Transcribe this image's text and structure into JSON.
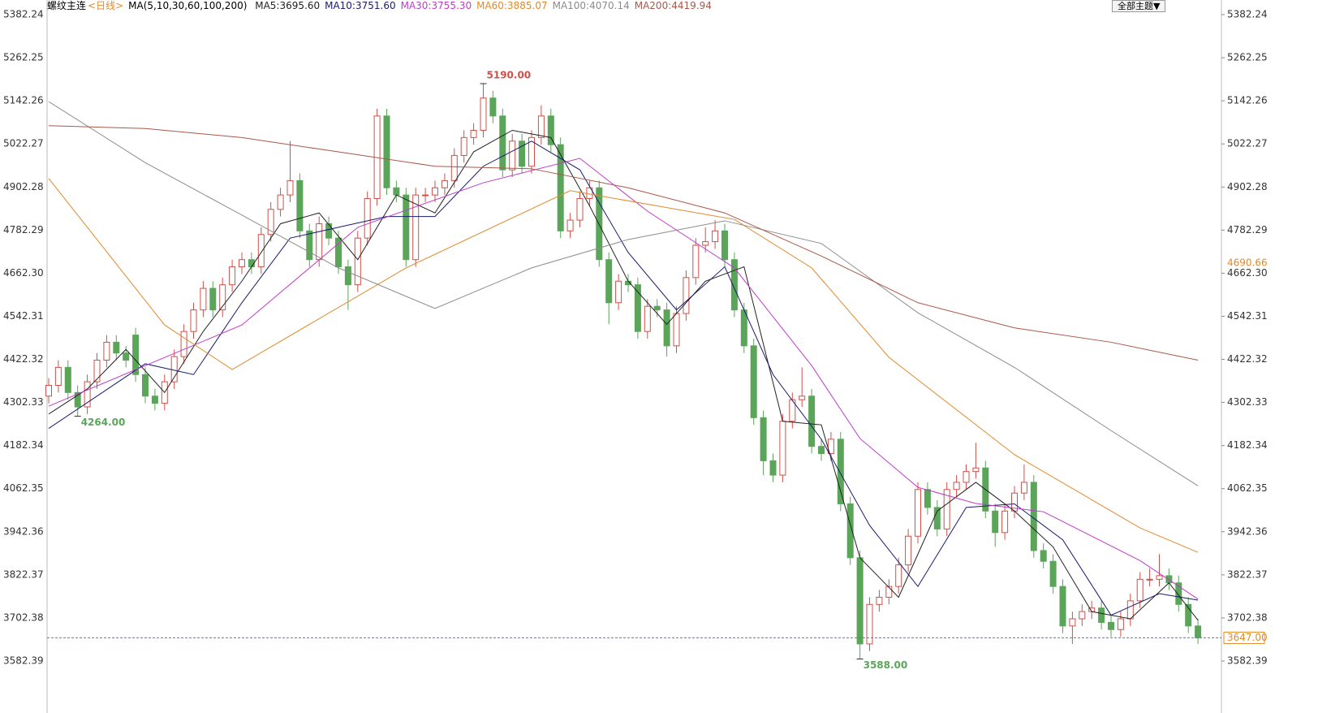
{
  "chart_data": {
    "type": "candlestick",
    "header": {
      "symbol": "螺纹主连",
      "period": "<日线>",
      "ma_set": "MA(5,10,30,60,100,200)",
      "theme_button": "全部主题▼"
    },
    "ylim": [
      3505.5,
      5422.9
    ],
    "yticks": [
      5382.24,
      5262.25,
      5142.26,
      5022.27,
      4902.28,
      4782.29,
      {
        "value": 4662.3,
        "label": "4662.30"
      },
      4542.31,
      4422.32,
      4302.33,
      4182.34,
      4062.35,
      3942.36,
      3822.37,
      3702.38,
      3582.39
    ],
    "up_color": "#d0504a",
    "down_color": "#5aa55a",
    "ohlc": [
      [
        4320,
        4370,
        4300,
        4350
      ],
      [
        4350,
        4420,
        4330,
        4400
      ],
      [
        4400,
        4420,
        4310,
        4330
      ],
      [
        4330,
        4350,
        4264,
        4290
      ],
      [
        4290,
        4380,
        4270,
        4360
      ],
      [
        4360,
        4440,
        4340,
        4420
      ],
      [
        4420,
        4490,
        4400,
        4470
      ],
      [
        4470,
        4490,
        4420,
        4440
      ],
      [
        4440,
        4460,
        4400,
        4420
      ],
      [
        4490,
        4510,
        4360,
        4380
      ],
      [
        4380,
        4400,
        4300,
        4320
      ],
      [
        4320,
        4340,
        4280,
        4300
      ],
      [
        4300,
        4380,
        4280,
        4360
      ],
      [
        4360,
        4450,
        4340,
        4430
      ],
      [
        4430,
        4520,
        4410,
        4500
      ],
      [
        4500,
        4580,
        4480,
        4560
      ],
      [
        4560,
        4640,
        4540,
        4620
      ],
      [
        4620,
        4640,
        4540,
        4560
      ],
      [
        4560,
        4650,
        4540,
        4630
      ],
      [
        4630,
        4700,
        4610,
        4680
      ],
      [
        4680,
        4720,
        4660,
        4700
      ],
      [
        4700,
        4720,
        4660,
        4680
      ],
      [
        4680,
        4790,
        4660,
        4770
      ],
      [
        4770,
        4860,
        4750,
        4840
      ],
      [
        4840,
        4900,
        4820,
        4880
      ],
      [
        4880,
        5030,
        4860,
        4920
      ],
      [
        4920,
        4940,
        4760,
        4780
      ],
      [
        4780,
        4800,
        4680,
        4700
      ],
      [
        4700,
        4820,
        4680,
        4800
      ],
      [
        4800,
        4820,
        4740,
        4760
      ],
      [
        4760,
        4780,
        4660,
        4680
      ],
      [
        4680,
        4700,
        4560,
        4630
      ],
      [
        4630,
        4780,
        4610,
        4760
      ],
      [
        4760,
        4890,
        4740,
        4870
      ],
      [
        4870,
        5120,
        4850,
        5100
      ],
      [
        5100,
        5120,
        4880,
        4900
      ],
      [
        4900,
        4920,
        4860,
        4880
      ],
      [
        4880,
        4900,
        4680,
        4700
      ],
      [
        4700,
        4900,
        4680,
        4880
      ],
      [
        4880,
        4900,
        4860,
        4880
      ],
      [
        4880,
        4920,
        4860,
        4900
      ],
      [
        4900,
        4940,
        4880,
        4920
      ],
      [
        4920,
        5010,
        4900,
        4990
      ],
      [
        4990,
        5060,
        4970,
        5040
      ],
      [
        5040,
        5080,
        5020,
        5060
      ],
      [
        5060,
        5190,
        5040,
        5150
      ],
      [
        5150,
        5170,
        5080,
        5100
      ],
      [
        5100,
        5120,
        4930,
        4950
      ],
      [
        4950,
        5050,
        4930,
        5030
      ],
      [
        5030,
        5050,
        4940,
        4960
      ],
      [
        4960,
        5060,
        4940,
        5040
      ],
      [
        5040,
        5130,
        5020,
        5100
      ],
      [
        5100,
        5120,
        5000,
        5020
      ],
      [
        5020,
        5040,
        4760,
        4780
      ],
      [
        4780,
        4830,
        4760,
        4810
      ],
      [
        4810,
        4890,
        4790,
        4870
      ],
      [
        4870,
        4920,
        4850,
        4900
      ],
      [
        4900,
        4920,
        4680,
        4700
      ],
      [
        4700,
        4720,
        4520,
        4580
      ],
      [
        4580,
        4660,
        4560,
        4640
      ],
      [
        4640,
        4660,
        4610,
        4630
      ],
      [
        4630,
        4650,
        4480,
        4500
      ],
      [
        4500,
        4590,
        4480,
        4570
      ],
      [
        4570,
        4590,
        4540,
        4560
      ],
      [
        4560,
        4580,
        4430,
        4460
      ],
      [
        4460,
        4570,
        4440,
        4550
      ],
      [
        4550,
        4670,
        4530,
        4650
      ],
      [
        4650,
        4760,
        4630,
        4740
      ],
      [
        4740,
        4790,
        4720,
        4750
      ],
      [
        4750,
        4810,
        4730,
        4780
      ],
      [
        4780,
        4800,
        4680,
        4700
      ],
      [
        4700,
        4720,
        4540,
        4560
      ],
      [
        4560,
        4580,
        4440,
        4460
      ],
      [
        4460,
        4480,
        4240,
        4260
      ],
      [
        4260,
        4280,
        4100,
        4140
      ],
      [
        4140,
        4160,
        4080,
        4100
      ],
      [
        4100,
        4270,
        4080,
        4250
      ],
      [
        4250,
        4330,
        4230,
        4310
      ],
      [
        4310,
        4400,
        4290,
        4320
      ],
      [
        4320,
        4340,
        4160,
        4180
      ],
      [
        4180,
        4200,
        4140,
        4160
      ],
      [
        4160,
        4220,
        4140,
        4200
      ],
      [
        4200,
        4220,
        4000,
        4020
      ],
      [
        4020,
        4040,
        3850,
        3870
      ],
      [
        3870,
        3890,
        3588,
        3630
      ],
      [
        3630,
        3760,
        3610,
        3740
      ],
      [
        3740,
        3780,
        3720,
        3760
      ],
      [
        3760,
        3810,
        3740,
        3790
      ],
      [
        3790,
        3870,
        3770,
        3850
      ],
      [
        3850,
        3950,
        3830,
        3930
      ],
      [
        3930,
        4080,
        3910,
        4060
      ],
      [
        4060,
        4080,
        3990,
        4010
      ],
      [
        4010,
        4030,
        3930,
        3950
      ],
      [
        3950,
        4080,
        3930,
        4060
      ],
      [
        4060,
        4100,
        4040,
        4080
      ],
      [
        4080,
        4130,
        4060,
        4110
      ],
      [
        4110,
        4190,
        4090,
        4120
      ],
      [
        4120,
        4140,
        3980,
        4000
      ],
      [
        4000,
        4020,
        3900,
        3940
      ],
      [
        3940,
        4020,
        3920,
        4000
      ],
      [
        4000,
        4070,
        3980,
        4050
      ],
      [
        4050,
        4130,
        4030,
        4080
      ],
      [
        4080,
        4100,
        3870,
        3890
      ],
      [
        3890,
        3910,
        3840,
        3860
      ],
      [
        3860,
        3880,
        3770,
        3790
      ],
      [
        3790,
        3810,
        3660,
        3680
      ],
      [
        3680,
        3720,
        3630,
        3700
      ],
      [
        3700,
        3740,
        3680,
        3720
      ],
      [
        3720,
        3750,
        3700,
        3730
      ],
      [
        3730,
        3750,
        3670,
        3690
      ],
      [
        3690,
        3710,
        3650,
        3670
      ],
      [
        3670,
        3720,
        3650,
        3700
      ],
      [
        3700,
        3770,
        3680,
        3750
      ],
      [
        3750,
        3830,
        3730,
        3810
      ],
      [
        3810,
        3840,
        3790,
        3810
      ],
      [
        3810,
        3880,
        3790,
        3820
      ],
      [
        3820,
        3840,
        3780,
        3800
      ],
      [
        3800,
        3820,
        3720,
        3740
      ],
      [
        3740,
        3760,
        3660,
        3680
      ],
      [
        3680,
        3700,
        3630,
        3647
      ]
    ],
    "ma_lines": [
      {
        "label": "MA5:3695.60",
        "color": "#222222",
        "x": [
          0,
          4,
          8,
          12,
          16,
          20,
          24,
          28,
          32,
          36,
          40,
          44,
          48,
          52,
          56,
          60,
          64,
          68,
          72,
          76,
          80,
          84,
          88,
          92,
          96,
          100,
          104,
          108,
          112,
          116,
          119
        ],
        "values": [
          4270,
          4340,
          4450,
          4330,
          4500,
          4640,
          4800,
          4830,
          4700,
          4880,
          4830,
          5000,
          5060,
          5040,
          4850,
          4640,
          4520,
          4640,
          4680,
          4250,
          4240,
          3870,
          3760,
          4000,
          4080,
          4000,
          3900,
          3720,
          3700,
          3800,
          3696
        ]
      },
      {
        "label": "MA10:3751.60",
        "color": "#1a1a6e",
        "x": [
          0,
          5,
          10,
          15,
          20,
          25,
          30,
          35,
          40,
          45,
          50,
          55,
          60,
          65,
          70,
          75,
          80,
          85,
          90,
          95,
          100,
          105,
          110,
          115,
          119
        ],
        "values": [
          4230,
          4320,
          4410,
          4380,
          4580,
          4760,
          4790,
          4820,
          4820,
          4960,
          5030,
          4950,
          4720,
          4560,
          4680,
          4380,
          4200,
          3960,
          3790,
          4010,
          4020,
          3920,
          3710,
          3770,
          3752
        ]
      },
      {
        "label": "MA30:3755.30",
        "color": "#c03cc8",
        "x": [
          0,
          20,
          32,
          45,
          55,
          62,
          71,
          79,
          84,
          90,
          96,
          103,
          113,
          119
        ],
        "values": [
          4292,
          4518,
          4790,
          4914,
          4982,
          4835,
          4677,
          4405,
          4202,
          4066,
          4021,
          3998,
          3862,
          3755
        ]
      },
      {
        "label": "MA60:3885.07",
        "color": "#e08a2c",
        "x": [
          0,
          12,
          19,
          37,
          54,
          71,
          79,
          87,
          100,
          113,
          119
        ],
        "values": [
          4926,
          4518,
          4394,
          4677,
          4892,
          4812,
          4677,
          4428,
          4157,
          3953,
          3885
        ]
      },
      {
        "label": "MA100:4070.14",
        "color": "#8c8c8c",
        "x": [
          0,
          10,
          20,
          30,
          40,
          50,
          60,
          70,
          80,
          90,
          100,
          110,
          119
        ],
        "values": [
          5140,
          4970,
          4824,
          4677,
          4564,
          4677,
          4756,
          4808,
          4745,
          4552,
          4400,
          4224,
          4070
        ]
      },
      {
        "label": "MA200:4419.94",
        "color": "#a8584a",
        "x": [
          0,
          10,
          20,
          30,
          40,
          50,
          60,
          70,
          80,
          90,
          100,
          110,
          119
        ],
        "values": [
          5073,
          5065,
          5040,
          5000,
          4960,
          4953,
          4900,
          4830,
          4710,
          4580,
          4510,
          4470,
          4420
        ]
      }
    ],
    "annotations": [
      {
        "value": 5190,
        "label": "5190.00",
        "index": 45,
        "color": "#d0504a"
      },
      {
        "value": 4264,
        "label": "4264.00",
        "index": 3,
        "color": "#5aa55a"
      },
      {
        "value": 3588,
        "label": "3588.00",
        "index": 84,
        "color": "#5aa55a"
      }
    ],
    "last_price": {
      "value": 3647,
      "label": "3647.00"
    },
    "right_marker": {
      "value": 4690.66,
      "label": "4690.66"
    }
  }
}
